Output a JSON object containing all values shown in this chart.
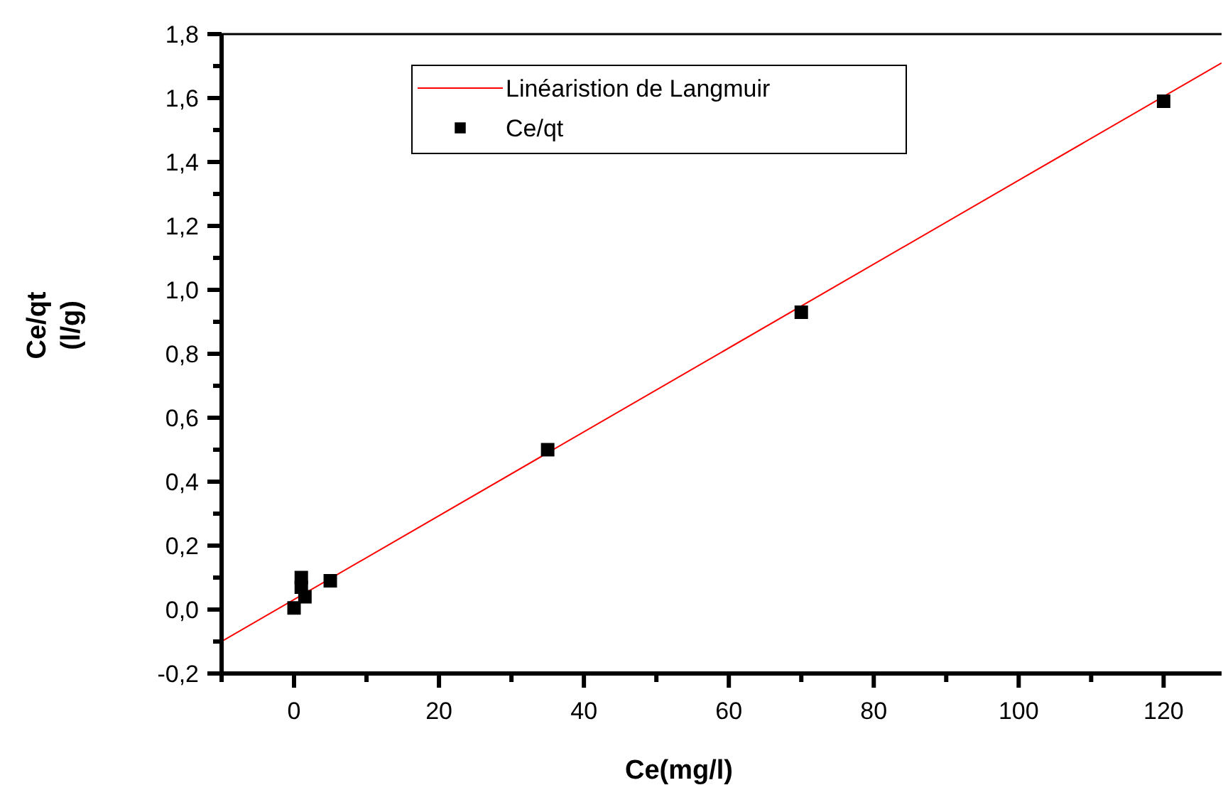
{
  "chart_data": {
    "type": "scatter",
    "xlabel": "Ce(mg/l)",
    "ylabel": "Ce/qt\n(l/g)",
    "legend": "top",
    "marker": "square",
    "grid": false,
    "xlim": [
      -10,
      128
    ],
    "ylim": [
      -0.2,
      1.8
    ],
    "xticks": [
      {
        "value": -10,
        "label": null
      },
      0,
      {
        "value": 10,
        "label": null
      },
      20,
      {
        "value": 30,
        "label": null
      },
      40,
      {
        "value": 50,
        "label": null
      },
      60,
      {
        "value": 70,
        "label": null
      },
      80,
      {
        "value": 90,
        "label": null
      },
      100,
      {
        "value": 110,
        "label": null
      },
      120
    ],
    "yticks": [
      {
        "value": -0.2,
        "label": "-0,2"
      },
      {
        "value": -0.1,
        "label": null
      },
      {
        "value": 0,
        "label": "0,0"
      },
      {
        "value": 0.1,
        "label": null
      },
      {
        "value": 0.2,
        "label": "0,2"
      },
      {
        "value": 0.3,
        "label": null
      },
      {
        "value": 0.4,
        "label": "0,4"
      },
      {
        "value": 0.5,
        "label": null
      },
      {
        "value": 0.6,
        "label": "0,6"
      },
      {
        "value": 0.7,
        "label": null
      },
      {
        "value": 0.8,
        "label": "0,8"
      },
      {
        "value": 0.9,
        "label": null
      },
      {
        "value": 1.0,
        "label": "1,0"
      },
      {
        "value": 1.1,
        "label": null
      },
      {
        "value": 1.2,
        "label": "1,2"
      },
      {
        "value": 1.3,
        "label": null
      },
      {
        "value": 1.4,
        "label": "1,4"
      },
      {
        "value": 1.5,
        "label": null
      },
      {
        "value": 1.6,
        "label": "1,6"
      },
      {
        "value": 1.7,
        "label": null
      },
      {
        "value": 1.8,
        "label": "1,8"
      }
    ],
    "series": [
      {
        "name": "Linéaristion de Langmuir",
        "type": "line",
        "color": "#ff0000",
        "marker": "none",
        "x": [
          -10,
          128
        ],
        "values": [
          -0.1,
          1.71
        ]
      },
      {
        "name": "Ce/qt",
        "type": "scatter",
        "color": "#000000",
        "x": [
          0,
          1,
          1,
          1.5,
          5,
          35,
          70,
          120
        ],
        "values": [
          0.005,
          0.1,
          0.07,
          0.04,
          0.09,
          0.5,
          0.93,
          1.59
        ]
      }
    ]
  }
}
